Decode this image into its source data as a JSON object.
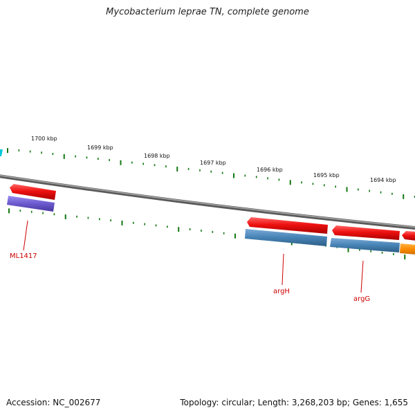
{
  "title": "Mycobacterium leprae TN, complete genome",
  "footer": {
    "accession": "Accession: NC_002677",
    "stats": "Topology: circular; Length: 3,268,203 bp; Genes: 1,655"
  },
  "scale_labels": [
    "1700 kbp",
    "1699 kbp",
    "1698 kbp",
    "1697 kbp",
    "1696 kbp",
    "1695 kbp",
    "1694 kbp"
  ],
  "gene_labels": [
    "ML1417",
    "argH",
    "argG"
  ],
  "colors": {
    "backbone": "#808080",
    "cds_red": "#ee1111",
    "cds_purple": "#6a5acd",
    "cds_blue": "#4682b4",
    "cds_orange": "#ff8c00",
    "tick_green": "#117711",
    "label_red": "#cc0000"
  }
}
